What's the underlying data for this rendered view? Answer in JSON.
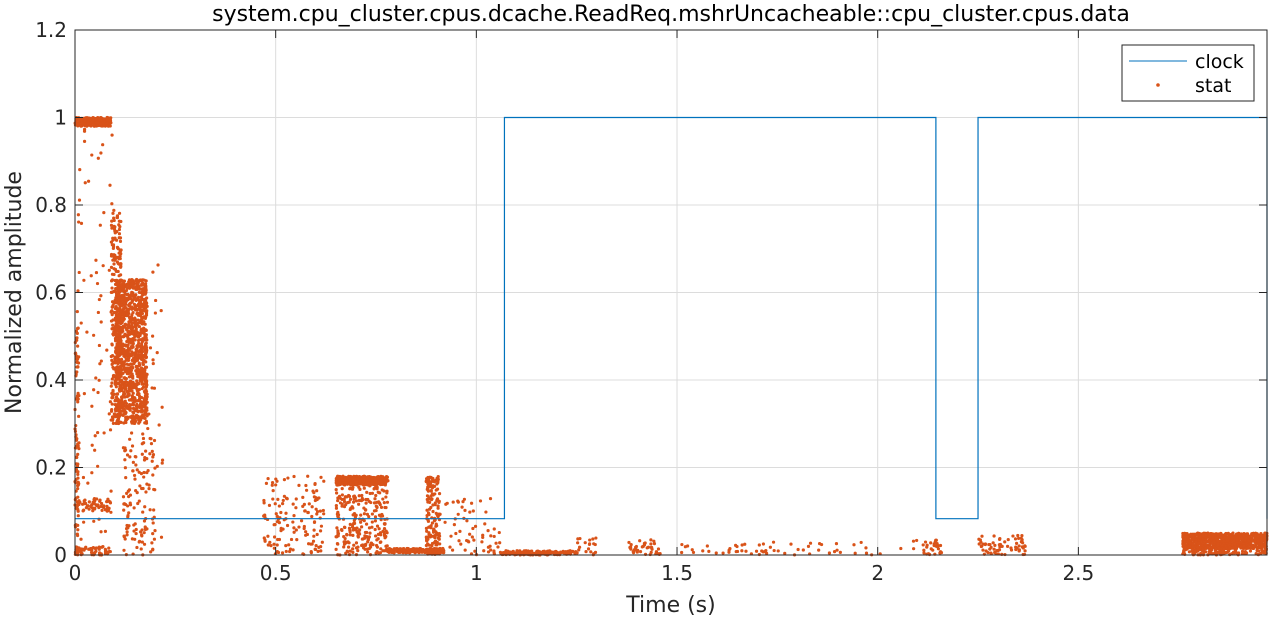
{
  "chart_data": {
    "type": "line",
    "title": "system.cpu_cluster.cpus.dcache.ReadReq.mshrUncacheable::cpu_cluster.cpus.data",
    "xlabel": "Time (s)",
    "ylabel": "Normalized amplitude",
    "xlim": [
      0,
      2.97
    ],
    "ylim": [
      0,
      1.2
    ],
    "xticks": [
      0,
      0.5,
      1,
      1.5,
      2,
      2.5
    ],
    "xtick_labels": [
      "0",
      "0.5",
      "1",
      "1.5",
      "2",
      "2.5"
    ],
    "yticks": [
      0,
      0.2,
      0.4,
      0.6,
      0.8,
      1,
      1.2
    ],
    "ytick_labels": [
      "0",
      "0.2",
      "0.4",
      "0.6",
      "0.8",
      "1",
      "1.2"
    ],
    "grid": true,
    "legend_position": "top-right",
    "series": [
      {
        "name": "clock",
        "style": "step-line",
        "color": "#0072BD",
        "points": [
          [
            0,
            0.083
          ],
          [
            1.07,
            0.083
          ],
          [
            1.07,
            1
          ],
          [
            2.145,
            1
          ],
          [
            2.145,
            0.083
          ],
          [
            2.25,
            0.083
          ],
          [
            2.25,
            1
          ],
          [
            2.97,
            1
          ],
          [
            2.97,
            0.083
          ]
        ]
      },
      {
        "name": "stat",
        "style": "scatter",
        "color": "#D95319",
        "clusters": [
          {
            "x": [
              0.0,
              0.01
            ],
            "y": [
              0.0,
              0.52
            ],
            "n": 90
          },
          {
            "x": [
              0.0,
              0.09
            ],
            "y": [
              0.98,
              1.0
            ],
            "n": 220
          },
          {
            "x": [
              0.0,
              0.09
            ],
            "y": [
              0.1,
              0.13
            ],
            "n": 60
          },
          {
            "x": [
              0.0,
              0.09
            ],
            "y": [
              0.0,
              0.02
            ],
            "n": 60
          },
          {
            "x": [
              0.005,
              0.095
            ],
            "y": [
              0.0,
              1.0
            ],
            "n": 70
          },
          {
            "x": [
              0.09,
              0.115
            ],
            "y": [
              0.3,
              0.79
            ],
            "n": 260
          },
          {
            "x": [
              0.1,
              0.18
            ],
            "y": [
              0.3,
              0.63
            ],
            "n": 1100
          },
          {
            "x": [
              0.12,
              0.2
            ],
            "y": [
              0.0,
              0.28
            ],
            "n": 120
          },
          {
            "x": [
              0.155,
              0.22
            ],
            "y": [
              0.0,
              0.7
            ],
            "n": 40
          },
          {
            "x": [
              0.47,
              0.62
            ],
            "y": [
              0.0,
              0.18
            ],
            "n": 140
          },
          {
            "x": [
              0.65,
              0.78
            ],
            "y": [
              0.16,
              0.18
            ],
            "n": 300
          },
          {
            "x": [
              0.65,
              0.78
            ],
            "y": [
              0.0,
              0.18
            ],
            "n": 300
          },
          {
            "x": [
              0.78,
              0.92
            ],
            "y": [
              0.005,
              0.015
            ],
            "n": 200
          },
          {
            "x": [
              0.875,
              0.91
            ],
            "y": [
              0.0,
              0.18
            ],
            "n": 160
          },
          {
            "x": [
              0.92,
              1.06
            ],
            "y": [
              0.0,
              0.13
            ],
            "n": 60
          },
          {
            "x": [
              1.06,
              1.25
            ],
            "y": [
              0.0,
              0.01
            ],
            "n": 160
          },
          {
            "x": [
              1.25,
              1.3
            ],
            "y": [
              0.0,
              0.04
            ],
            "n": 20
          },
          {
            "x": [
              1.38,
              1.46
            ],
            "y": [
              0.0,
              0.035
            ],
            "n": 40
          },
          {
            "x": [
              1.5,
              2.06
            ],
            "y": [
              0.0,
              0.03
            ],
            "n": 60
          },
          {
            "x": [
              2.08,
              2.16
            ],
            "y": [
              0.0,
              0.035
            ],
            "n": 30
          },
          {
            "x": [
              2.25,
              2.37
            ],
            "y": [
              0.0,
              0.045
            ],
            "n": 70
          },
          {
            "x": [
              2.76,
              2.97
            ],
            "y": [
              0.015,
              0.05
            ],
            "n": 700
          },
          {
            "x": [
              2.76,
              2.97
            ],
            "y": [
              0.0,
              0.02
            ],
            "n": 150
          }
        ]
      }
    ]
  }
}
